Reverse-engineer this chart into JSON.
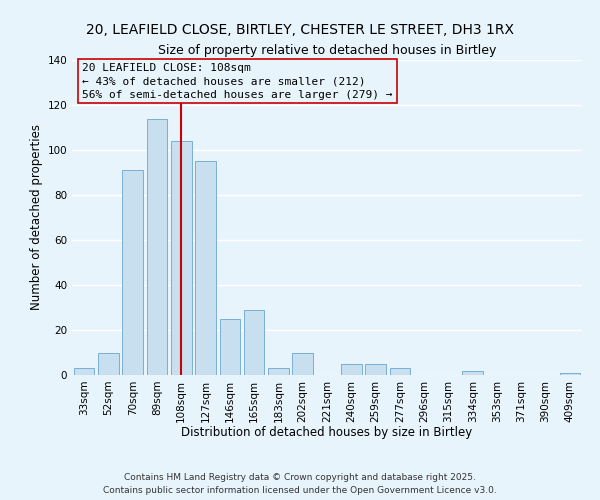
{
  "title": "20, LEAFIELD CLOSE, BIRTLEY, CHESTER LE STREET, DH3 1RX",
  "subtitle": "Size of property relative to detached houses in Birtley",
  "xlabel": "Distribution of detached houses by size in Birtley",
  "ylabel": "Number of detached properties",
  "categories": [
    "33sqm",
    "52sqm",
    "70sqm",
    "89sqm",
    "108sqm",
    "127sqm",
    "146sqm",
    "165sqm",
    "183sqm",
    "202sqm",
    "221sqm",
    "240sqm",
    "259sqm",
    "277sqm",
    "296sqm",
    "315sqm",
    "334sqm",
    "353sqm",
    "371sqm",
    "390sqm",
    "409sqm"
  ],
  "values": [
    3,
    10,
    91,
    114,
    104,
    95,
    25,
    29,
    3,
    10,
    0,
    5,
    5,
    3,
    0,
    0,
    2,
    0,
    0,
    0,
    1
  ],
  "bar_color": "#c8dff0",
  "bar_edge_color": "#7bafd4",
  "vline_x": 4,
  "vline_color": "#cc0000",
  "ylim": [
    0,
    140
  ],
  "yticks": [
    0,
    20,
    40,
    60,
    80,
    100,
    120,
    140
  ],
  "annotation_title": "20 LEAFIELD CLOSE: 108sqm",
  "annotation_line1": "← 43% of detached houses are smaller (212)",
  "annotation_line2": "56% of semi-detached houses are larger (279) →",
  "footer_line1": "Contains HM Land Registry data © Crown copyright and database right 2025.",
  "footer_line2": "Contains public sector information licensed under the Open Government Licence v3.0.",
  "background_color": "#e8f4fc",
  "grid_color": "#ffffff",
  "title_fontsize": 10,
  "subtitle_fontsize": 9,
  "axis_label_fontsize": 8.5,
  "tick_fontsize": 7.5,
  "footer_fontsize": 6.5,
  "ann_fontsize": 8
}
